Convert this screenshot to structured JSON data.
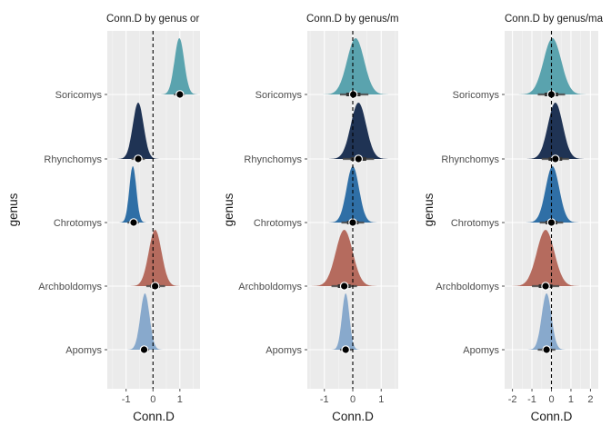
{
  "figure": {
    "background": "#ffffff",
    "panel_bg": "#ebebeb"
  },
  "chart_data": [
    {
      "type": "density",
      "title": "Conn.D by genus or",
      "xlabel": "Conn.D",
      "ylabel": "genus",
      "xlim": [
        -1.7,
        1.75
      ],
      "xticks": [
        "-1",
        "0",
        "1"
      ],
      "categories": [
        "Apomys",
        "Archboldomys",
        "Chrotomys",
        "Rhynchomys",
        "Soricomys"
      ],
      "reference_line_x": 0,
      "series": [
        {
          "category": "Apomys",
          "color": "#88a9cc",
          "center": -0.3,
          "spread": 0.17,
          "point": -0.33,
          "interval": [
            -0.48,
            -0.14
          ]
        },
        {
          "category": "Archboldomys",
          "color": "#b56b5e",
          "center": 0.08,
          "spread": 0.24,
          "point": 0.08,
          "interval": [
            -0.25,
            0.45
          ]
        },
        {
          "category": "Chrotomys",
          "color": "#2f6fa6",
          "center": -0.75,
          "spread": 0.13,
          "point": -0.72,
          "interval": [
            -0.95,
            -0.52
          ]
        },
        {
          "category": "Rhynchomys",
          "color": "#1f3354",
          "center": -0.55,
          "spread": 0.2,
          "point": -0.55,
          "interval": [
            -0.8,
            -0.3
          ]
        },
        {
          "category": "Soricomys",
          "color": "#5aa3ae",
          "center": 0.98,
          "spread": 0.18,
          "point": 1.0,
          "interval": [
            0.78,
            1.18
          ]
        }
      ]
    },
    {
      "type": "density",
      "title": "Conn.D by genus/m",
      "xlabel": "Conn.D",
      "ylabel": "genus",
      "xlim": [
        -1.6,
        1.6
      ],
      "xticks": [
        "-1",
        "0",
        "1"
      ],
      "categories": [
        "Apomys",
        "Archboldomys",
        "Chrotomys",
        "Rhynchomys",
        "Soricomys"
      ],
      "reference_line_x": 0,
      "series": [
        {
          "category": "Apomys",
          "color": "#88a9cc",
          "center": -0.25,
          "spread": 0.13,
          "point": -0.25,
          "interval": [
            -0.45,
            0.0
          ]
        },
        {
          "category": "Archboldomys",
          "color": "#b56b5e",
          "center": -0.3,
          "spread": 0.3,
          "point": -0.3,
          "interval": [
            -0.75,
            0.15
          ]
        },
        {
          "category": "Chrotomys",
          "color": "#2f6fa6",
          "center": 0.0,
          "spread": 0.22,
          "point": 0.0,
          "interval": [
            -0.4,
            0.4
          ]
        },
        {
          "category": "Rhynchomys",
          "color": "#1f3354",
          "center": 0.2,
          "spread": 0.27,
          "point": 0.2,
          "interval": [
            -0.35,
            0.75
          ]
        },
        {
          "category": "Soricomys",
          "color": "#5aa3ae",
          "center": 0.1,
          "spread": 0.3,
          "point": 0.02,
          "interval": [
            -0.45,
            0.55
          ]
        }
      ]
    },
    {
      "type": "density",
      "title": "Conn.D by genus/ma",
      "xlabel": "Conn.D",
      "ylabel": "genus",
      "xlim": [
        -2.4,
        2.4
      ],
      "xticks": [
        "-2",
        "-1",
        "0",
        "1",
        "2"
      ],
      "categories": [
        "Apomys",
        "Archboldomys",
        "Chrotomys",
        "Rhynchomys",
        "Soricomys"
      ],
      "reference_line_x": 0,
      "series": [
        {
          "category": "Apomys",
          "color": "#88a9cc",
          "center": -0.25,
          "spread": 0.25,
          "point": -0.25,
          "interval": [
            -0.7,
            0.2
          ]
        },
        {
          "category": "Archboldomys",
          "color": "#b56b5e",
          "center": -0.3,
          "spread": 0.45,
          "point": -0.3,
          "interval": [
            -1.0,
            0.4
          ]
        },
        {
          "category": "Chrotomys",
          "color": "#2f6fa6",
          "center": 0.05,
          "spread": 0.35,
          "point": 0.0,
          "interval": [
            -0.6,
            0.6
          ]
        },
        {
          "category": "Rhynchomys",
          "color": "#1f3354",
          "center": 0.2,
          "spread": 0.38,
          "point": 0.2,
          "interval": [
            -0.5,
            0.9
          ]
        },
        {
          "category": "Soricomys",
          "color": "#5aa3ae",
          "center": 0.05,
          "spread": 0.45,
          "point": 0.0,
          "interval": [
            -0.7,
            0.7
          ]
        }
      ]
    }
  ]
}
